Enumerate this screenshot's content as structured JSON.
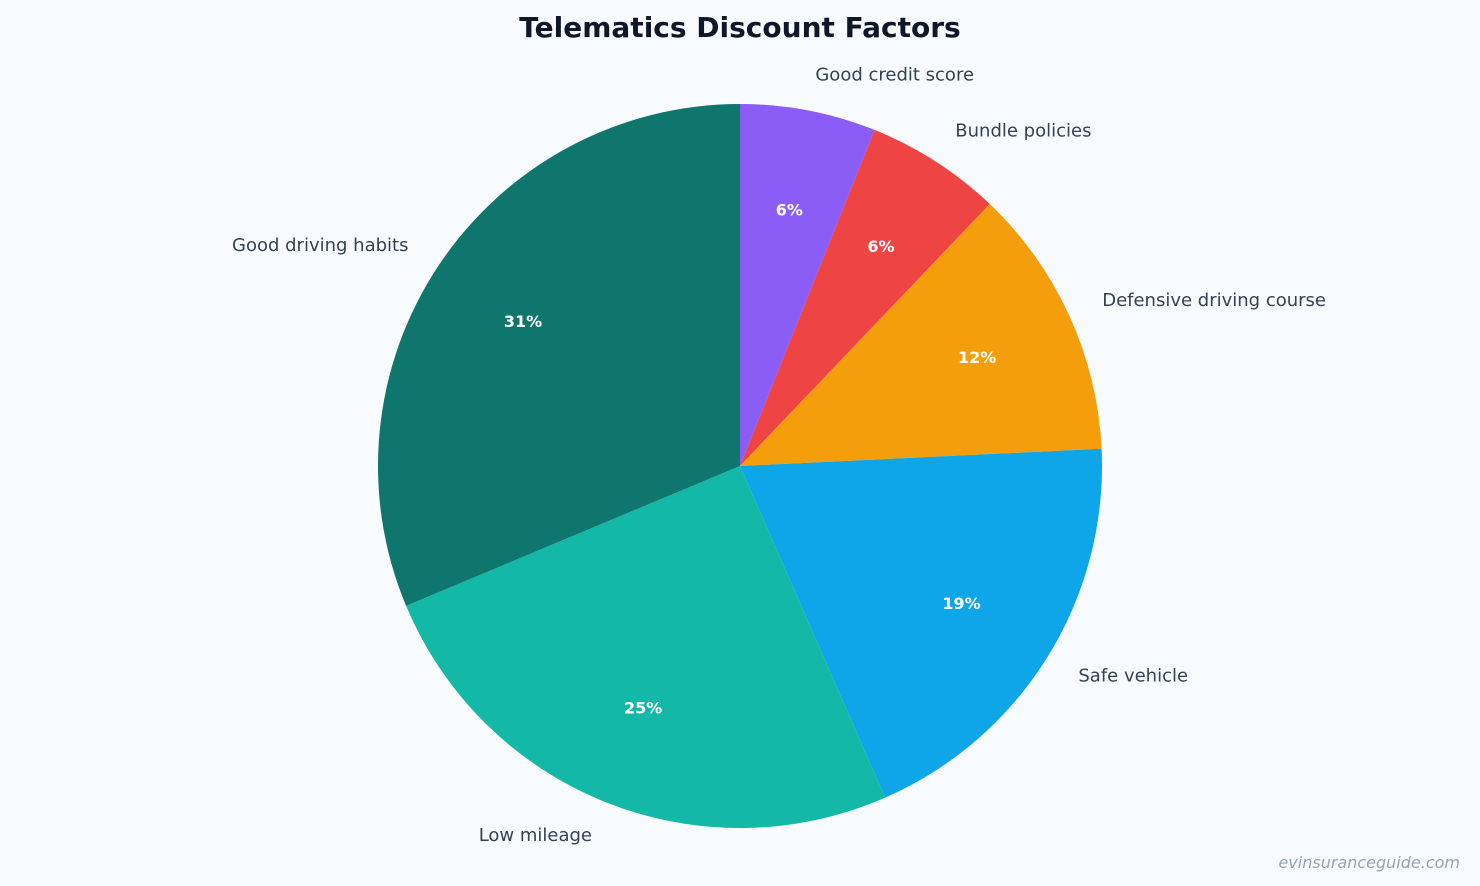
{
  "chart_data": {
    "type": "pie",
    "title": "Telematics Discount Factors",
    "start": "top",
    "direction": "clockwise",
    "slices": [
      {
        "label": "Good credit score",
        "value": 6,
        "pct_label": "6%",
        "color": "#8b5cf6"
      },
      {
        "label": "Bundle policies",
        "value": 6,
        "pct_label": "6%",
        "color": "#ef4444"
      },
      {
        "label": "Defensive driving course",
        "value": 12,
        "pct_label": "12%",
        "color": "#f59e0b"
      },
      {
        "label": "Safe vehicle",
        "value": 19,
        "pct_label": "19%",
        "color": "#0ea5e9"
      },
      {
        "label": "Low mileage",
        "value": 25,
        "pct_label": "25%",
        "color": "#14b8a6"
      },
      {
        "label": "Good driving habits",
        "value": 31,
        "pct_label": "31%",
        "color": "#0f766e"
      }
    ]
  },
  "watermark": "evinsuranceguide.com"
}
